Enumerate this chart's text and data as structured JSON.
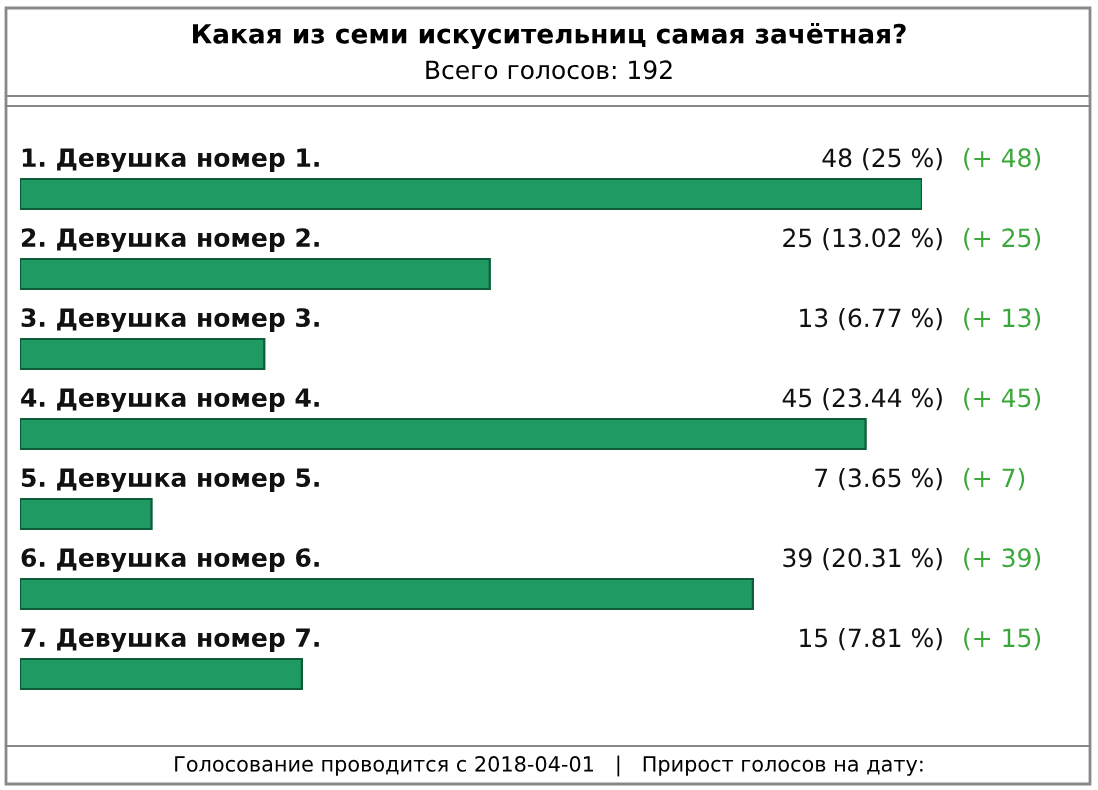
{
  "chart_data": {
    "type": "bar",
    "orientation": "horizontal",
    "title": "Какая из семи искусительниц самая зачётная?",
    "subtitle": "Всего голосов: 192",
    "categories": [
      "1. Девушка номер 1.",
      "2. Девушка номер 2.",
      "3. Девушка номер 3.",
      "4. Девушка номер 4.",
      "5. Девушка номер 5.",
      "6. Девушка номер 6.",
      "7. Девушка номер 7."
    ],
    "values": [
      48,
      25,
      13,
      45,
      7,
      39,
      15
    ],
    "value_labels": [
      "48 (25 %)",
      "25 (13.02 %)",
      "13 (6.77 %)",
      "45 (23.44 %)",
      "7 (3.65 %)",
      "39 (20.31 %)",
      "15 (7.81 %)"
    ],
    "color": "#1e9a62",
    "tick_labels": false,
    "annotations": [
      "(+ 48)",
      "(+ 25)",
      "(+ 13)",
      "(+ 45)",
      "(+ 7)",
      "(+ 39)",
      "(+ 15)",
      "Голосование проводится с 2018-04-01   |   Прирост голосов на дату:"
    ]
  }
}
